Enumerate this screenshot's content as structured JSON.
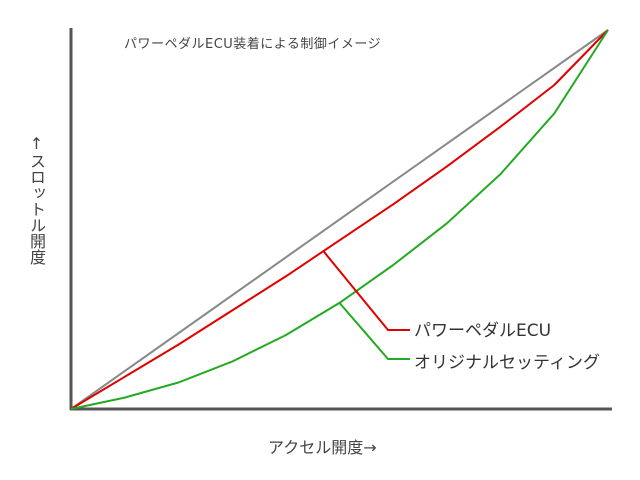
{
  "chart_data": {
    "type": "line",
    "title": "パワーペダルECU装着による制御イメージ",
    "xlabel": "アクセル開度→",
    "ylabel": "↑スロットル開度",
    "xlim": [
      0,
      1
    ],
    "ylim": [
      0,
      1
    ],
    "grid": false,
    "legend_position": "right",
    "series": [
      {
        "name": "",
        "color": "#888888",
        "x": [
          0,
          1
        ],
        "y": [
          0,
          1
        ]
      },
      {
        "name": "パワーペダルECU",
        "color": "#e00000",
        "x": [
          0,
          0.1,
          0.2,
          0.3,
          0.4,
          0.5,
          0.6,
          0.7,
          0.8,
          0.9,
          1
        ],
        "y": [
          0,
          0.085,
          0.17,
          0.26,
          0.35,
          0.445,
          0.54,
          0.64,
          0.745,
          0.855,
          1
        ]
      },
      {
        "name": "オリジナルセッティング",
        "color": "#22aa22",
        "x": [
          0,
          0.1,
          0.2,
          0.3,
          0.4,
          0.5,
          0.6,
          0.7,
          0.8,
          0.9,
          1
        ],
        "y": [
          0,
          0.03,
          0.07,
          0.125,
          0.195,
          0.28,
          0.38,
          0.49,
          0.62,
          0.78,
          1
        ]
      }
    ]
  }
}
